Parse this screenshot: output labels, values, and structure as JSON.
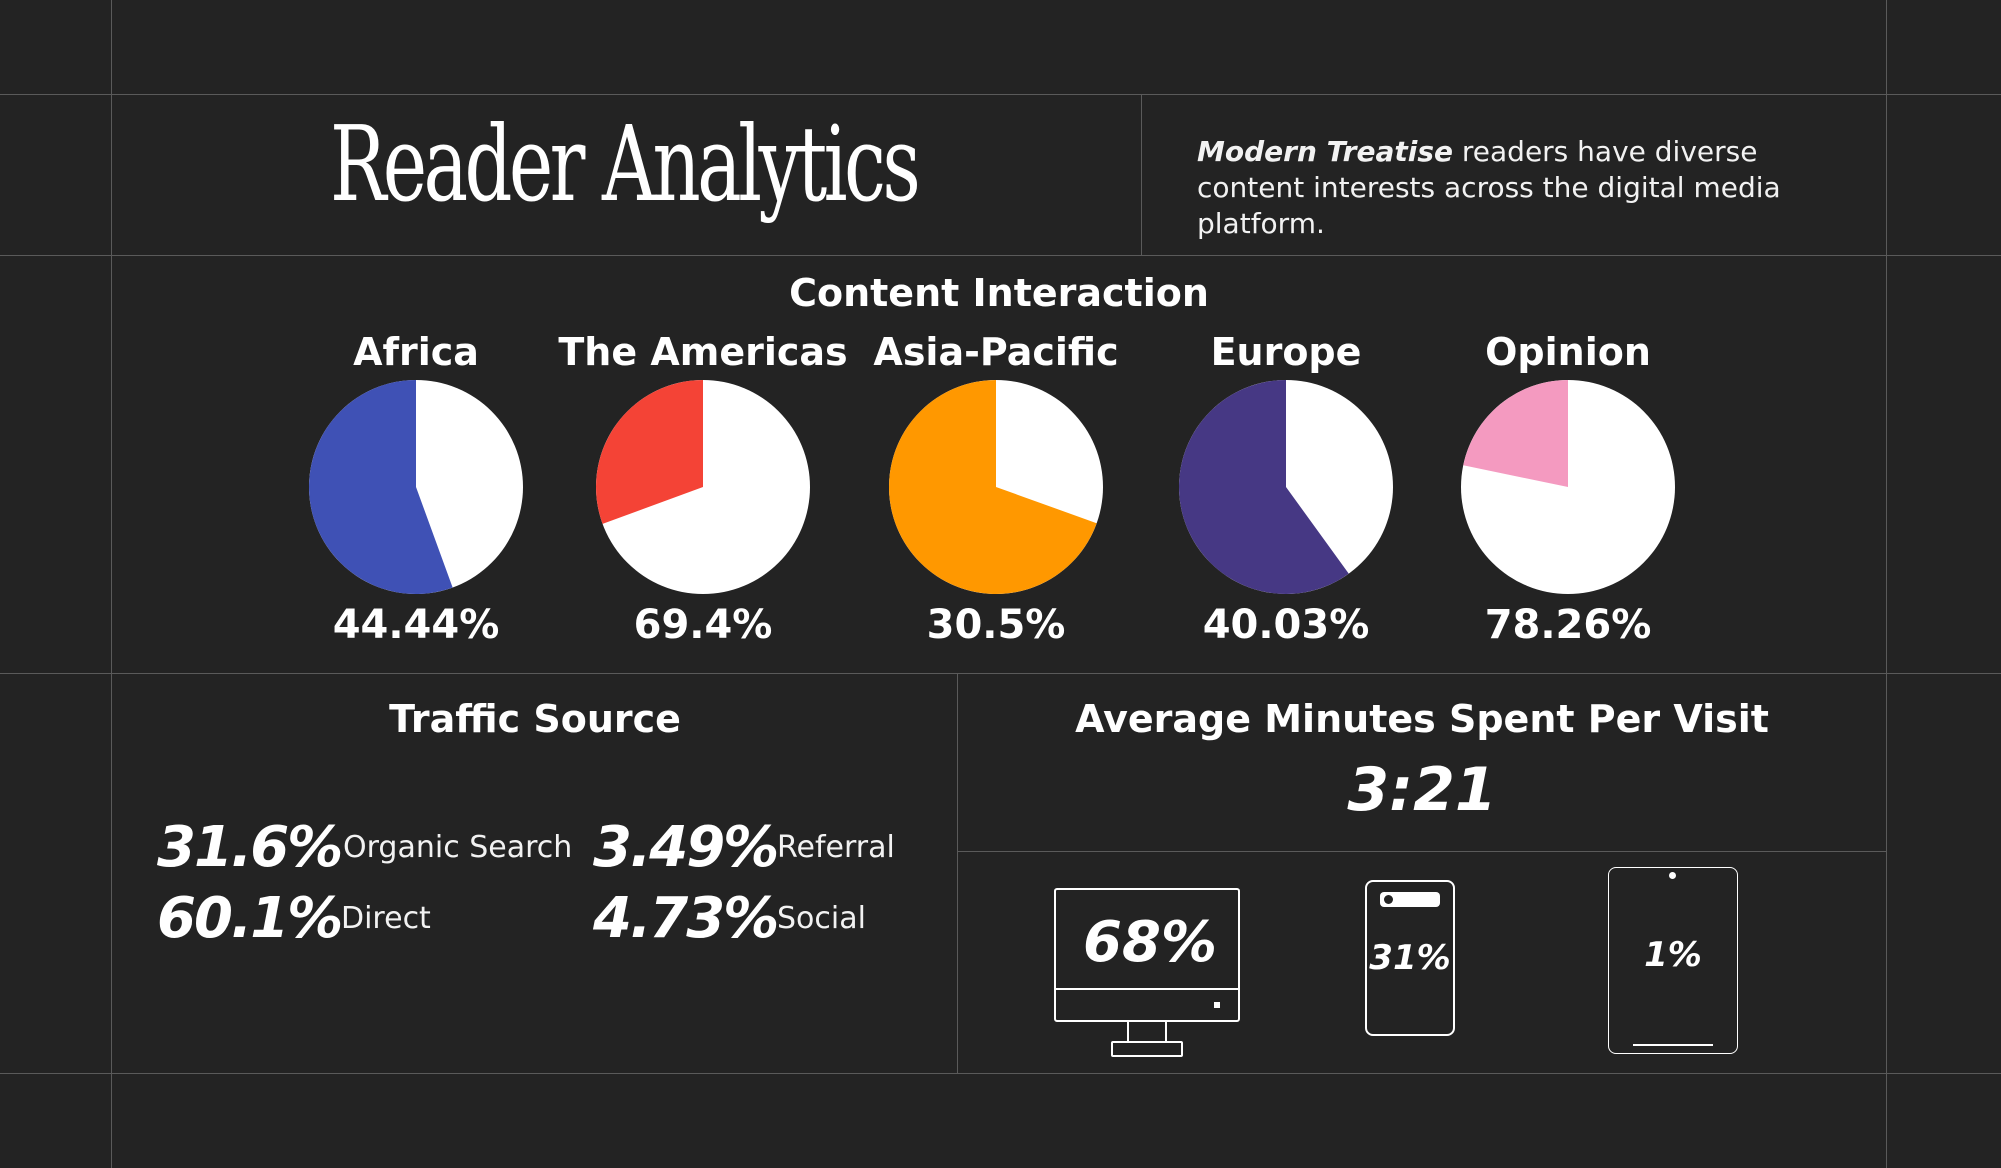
{
  "header": {
    "title": "Reader Analytics",
    "intro_emphasis": "Modern Treatise",
    "intro_rest": " readers have diverse content interests across the digital media platform."
  },
  "content_interaction": {
    "title": "Content Interaction"
  },
  "chart_data": {
    "type": "pie",
    "title": "Content Interaction",
    "categories": [
      "Africa",
      "The Americas",
      "Asia-Pacific",
      "Europe",
      "Opinion"
    ],
    "values": [
      44.44,
      69.4,
      30.5,
      40.03,
      78.26
    ],
    "value_labels": [
      "44.44%",
      "69.4%",
      "30.5%",
      "40.03%",
      "78.26%"
    ],
    "colors": [
      "#3f51b5",
      "#f44336",
      "#ff9800",
      "#463884",
      "#f49ac0"
    ],
    "remainder_color": "#ffffff",
    "grid": false,
    "legend": "none"
  },
  "traffic": {
    "title": "Traffic Source",
    "items": [
      {
        "value": "31.6%",
        "label": "Organic Search"
      },
      {
        "value": "3.49%",
        "label": "Referral"
      },
      {
        "value": "60.1%",
        "label": "Direct"
      },
      {
        "value": "4.73%",
        "label": "Social"
      }
    ]
  },
  "visit": {
    "title": "Average Minutes Spent Per Visit",
    "value": "3:21"
  },
  "devices": {
    "desktop": {
      "icon": "desktop-icon",
      "value": "68%"
    },
    "phone": {
      "icon": "phone-icon",
      "value": "31%"
    },
    "tablet": {
      "icon": "tablet-icon",
      "value": "1%"
    }
  }
}
